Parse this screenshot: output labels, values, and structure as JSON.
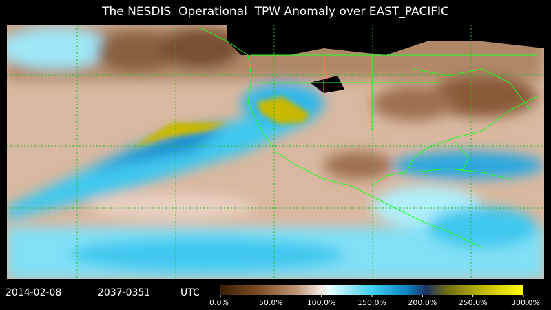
{
  "header": {
    "title": "The NESDIS  Operational  TPW Anomaly over EAST_PACIFIC"
  },
  "footer": {
    "date": "2014-02-08",
    "time": "2037-0351",
    "zone": "UTC"
  },
  "colorbar": {
    "ticks": [
      {
        "value": 0,
        "label": "0.0%"
      },
      {
        "value": 50,
        "label": "50.0%"
      },
      {
        "value": 100,
        "label": "100.0%"
      },
      {
        "value": 150,
        "label": "150.0%"
      },
      {
        "value": 200,
        "label": "200.0%"
      },
      {
        "value": 250,
        "label": "250.0%"
      },
      {
        "value": 300,
        "label": "300.0%"
      }
    ]
  }
}
